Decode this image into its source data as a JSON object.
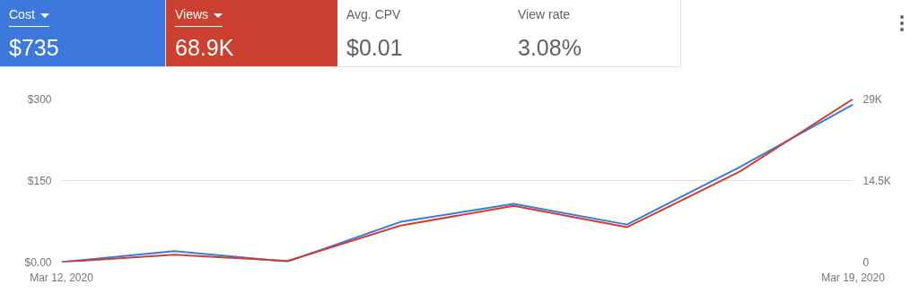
{
  "chart_data": {
    "type": "line",
    "x": [
      "2020-03-12",
      "2020-03-13",
      "2020-03-14",
      "2020-03-15",
      "2020-03-16",
      "2020-03-17",
      "2020-03-18",
      "2020-03-19"
    ],
    "series": [
      {
        "color": "#3d79dd",
        "values": [
          0,
          20,
          1,
          74,
          107,
          69,
          175,
          290
        ]
      },
      {
        "color": "#cc4031",
        "axis": "y2",
        "values": [
          0,
          1300,
          200,
          6500,
          10000,
          6200,
          16100,
          29000
        ]
      }
    ],
    "xlim": [
      "2020-03-12",
      "2020-03-19"
    ],
    "xticks": [
      {
        "value": "2020-03-12",
        "label": "Mar 12, 2020"
      },
      {
        "value": "2020-03-19",
        "label": "Mar 19, 2020"
      }
    ],
    "ylim": [
      0,
      300
    ],
    "yticks": [
      {
        "value": 0,
        "label": "$0.00"
      },
      {
        "value": 150,
        "label": "$150"
      },
      {
        "value": 300,
        "label": "$300"
      }
    ],
    "y2lim": [
      0,
      29000
    ],
    "y2ticks": [
      0,
      {
        "value": 14500,
        "label": "14.5K"
      },
      {
        "value": 29000,
        "label": "29K"
      }
    ],
    "grid": "y",
    "marker": "none",
    "line_style": "solid",
    "annotations": [
      "Cost",
      "$735",
      "Views",
      "68.9K",
      "Avg. CPV",
      "$0.01",
      "View rate",
      "3.08%"
    ]
  }
}
